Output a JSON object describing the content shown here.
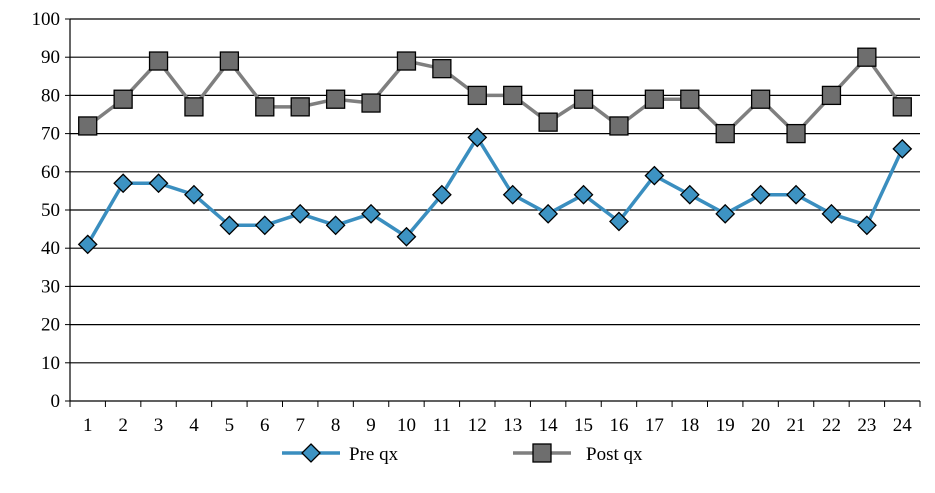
{
  "chart_data": {
    "type": "line",
    "title": "",
    "xlabel": "",
    "ylabel": "",
    "categories": [
      "1",
      "2",
      "3",
      "4",
      "5",
      "6",
      "7",
      "8",
      "9",
      "10",
      "11",
      "12",
      "13",
      "14",
      "15",
      "16",
      "17",
      "18",
      "19",
      "20",
      "21",
      "22",
      "23",
      "24"
    ],
    "ylim": [
      0,
      100
    ],
    "yticks": [
      0,
      10,
      20,
      30,
      40,
      50,
      60,
      70,
      80,
      90,
      100
    ],
    "grid": "horizontal",
    "legend_position": "bottom",
    "series": [
      {
        "name": "Pre qx",
        "marker": "diamond",
        "color": "#3a8ebf",
        "marker_fill": "#3d93c3",
        "values": [
          41,
          57,
          57,
          54,
          46,
          46,
          49,
          46,
          49,
          43,
          54,
          69,
          54,
          49,
          54,
          47,
          59,
          54,
          49,
          54,
          54,
          49,
          46,
          66
        ]
      },
      {
        "name": "Post qx",
        "marker": "square",
        "color": "#7f7f7f",
        "marker_fill": "#6e6e6e",
        "values": [
          72,
          79,
          89,
          77,
          89,
          77,
          77,
          79,
          78,
          89,
          87,
          80,
          80,
          73,
          79,
          72,
          79,
          79,
          70,
          79,
          70,
          80,
          90,
          77
        ]
      }
    ]
  }
}
